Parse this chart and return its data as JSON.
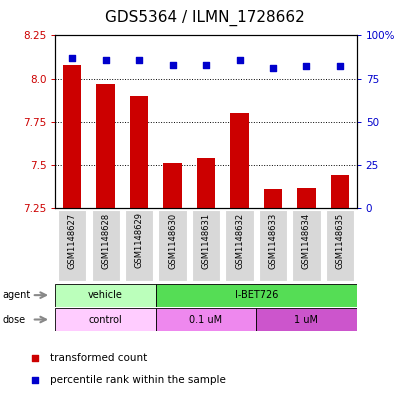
{
  "title": "GDS5364 / ILMN_1728662",
  "samples": [
    "GSM1148627",
    "GSM1148628",
    "GSM1148629",
    "GSM1148630",
    "GSM1148631",
    "GSM1148632",
    "GSM1148633",
    "GSM1148634",
    "GSM1148635"
  ],
  "bar_values": [
    8.08,
    7.97,
    7.9,
    7.51,
    7.54,
    7.8,
    7.36,
    7.37,
    7.44
  ],
  "percentile_values": [
    87,
    86,
    86,
    83,
    83,
    86,
    81,
    82,
    82
  ],
  "ylim_left": [
    7.25,
    8.25
  ],
  "ylim_right": [
    0,
    100
  ],
  "yticks_left": [
    7.25,
    7.5,
    7.75,
    8.0,
    8.25
  ],
  "yticks_right": [
    0,
    25,
    50,
    75,
    100
  ],
  "ytick_labels_right": [
    "0",
    "25",
    "50",
    "75",
    "100%"
  ],
  "bar_color": "#cc0000",
  "dot_color": "#0000cc",
  "bar_bottom": 7.25,
  "agent_groups": [
    {
      "label": "vehicle",
      "start": 0,
      "end": 3,
      "color": "#bbffbb"
    },
    {
      "label": "I-BET726",
      "start": 3,
      "end": 9,
      "color": "#55dd55"
    }
  ],
  "dose_groups": [
    {
      "label": "control",
      "start": 0,
      "end": 3,
      "color": "#ffccff"
    },
    {
      "label": "0.1 uM",
      "start": 3,
      "end": 6,
      "color": "#ee88ee"
    },
    {
      "label": "1 uM",
      "start": 6,
      "end": 9,
      "color": "#cc55cc"
    }
  ],
  "legend_items": [
    {
      "color": "#cc0000",
      "label": "transformed count"
    },
    {
      "color": "#0000cc",
      "label": "percentile rank within the sample"
    }
  ],
  "hgrid_values": [
    7.5,
    7.75,
    8.0
  ],
  "title_fontsize": 11,
  "tick_fontsize": 7.5,
  "sample_fontsize": 6.0,
  "annotation_fontsize": 7.0,
  "legend_fontsize": 7.5
}
